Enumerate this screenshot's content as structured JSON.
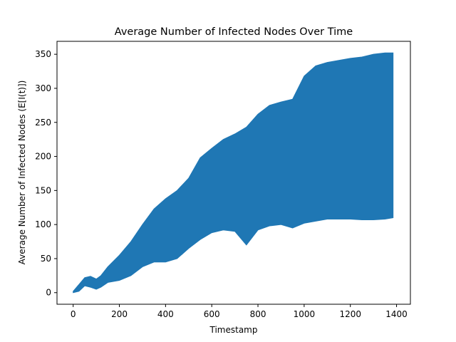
{
  "chart_data": {
    "type": "area",
    "title": "Average Number of Infected Nodes Over Time",
    "xlabel": "Timestamp",
    "ylabel": "Average Number of Infected Nodes (E[I(t)])",
    "xlim": [
      -70,
      1460
    ],
    "ylim": [
      -17,
      369
    ],
    "xticks": [
      0,
      200,
      400,
      600,
      800,
      1000,
      1200,
      1400
    ],
    "yticks": [
      0,
      50,
      100,
      150,
      200,
      250,
      300,
      350
    ],
    "grid": false,
    "legend": "none",
    "color": "#1f77b4",
    "series": [
      {
        "x": [
          0,
          25,
          50,
          75,
          100,
          120,
          150,
          200,
          250,
          300,
          350,
          400,
          450,
          500,
          550,
          600,
          650,
          700,
          750,
          800,
          850,
          900,
          950,
          1000,
          1050,
          1100,
          1150,
          1200,
          1250,
          1300,
          1350,
          1385
        ],
        "upper": [
          2,
          12,
          22,
          24,
          20,
          25,
          38,
          55,
          75,
          100,
          123,
          138,
          150,
          168,
          198,
          212,
          225,
          233,
          243,
          262,
          275,
          280,
          284,
          318,
          333,
          338,
          341,
          344,
          346,
          350,
          352,
          352
        ],
        "lower": [
          0,
          2,
          10,
          8,
          5,
          8,
          15,
          18,
          25,
          38,
          45,
          45,
          50,
          65,
          78,
          88,
          92,
          90,
          70,
          92,
          98,
          100,
          95,
          102,
          105,
          108,
          108,
          108,
          107,
          107,
          108,
          110
        ]
      }
    ]
  }
}
